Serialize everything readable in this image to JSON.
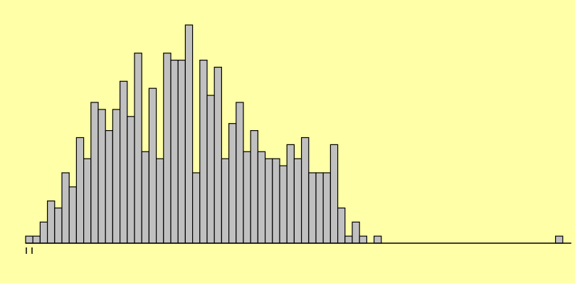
{
  "colors": {
    "background": "#FFFFA8",
    "bar_fill": "#C0C0C0",
    "stroke": "#000000"
  },
  "chart_data": {
    "type": "bar",
    "title": "",
    "xlabel": "",
    "ylabel": "",
    "grid": false,
    "legend": "none",
    "ylim": [
      0,
      30
    ],
    "values": [
      1,
      1,
      3,
      6,
      5,
      10,
      8,
      15,
      12,
      20,
      19,
      16,
      19,
      23,
      18,
      27,
      13,
      22,
      12,
      27,
      26,
      26,
      31,
      10,
      26,
      21,
      25,
      12,
      17,
      20,
      13,
      16,
      13,
      12,
      12,
      11,
      14,
      12,
      15,
      10,
      10,
      10,
      14,
      5,
      1,
      3,
      1,
      0,
      1,
      0,
      0,
      0,
      0,
      0,
      0,
      0,
      0,
      0,
      0,
      0,
      0,
      0,
      0,
      0,
      0,
      0,
      0,
      0,
      0,
      0,
      0,
      0,
      0,
      1
    ],
    "rug_count": 2
  }
}
